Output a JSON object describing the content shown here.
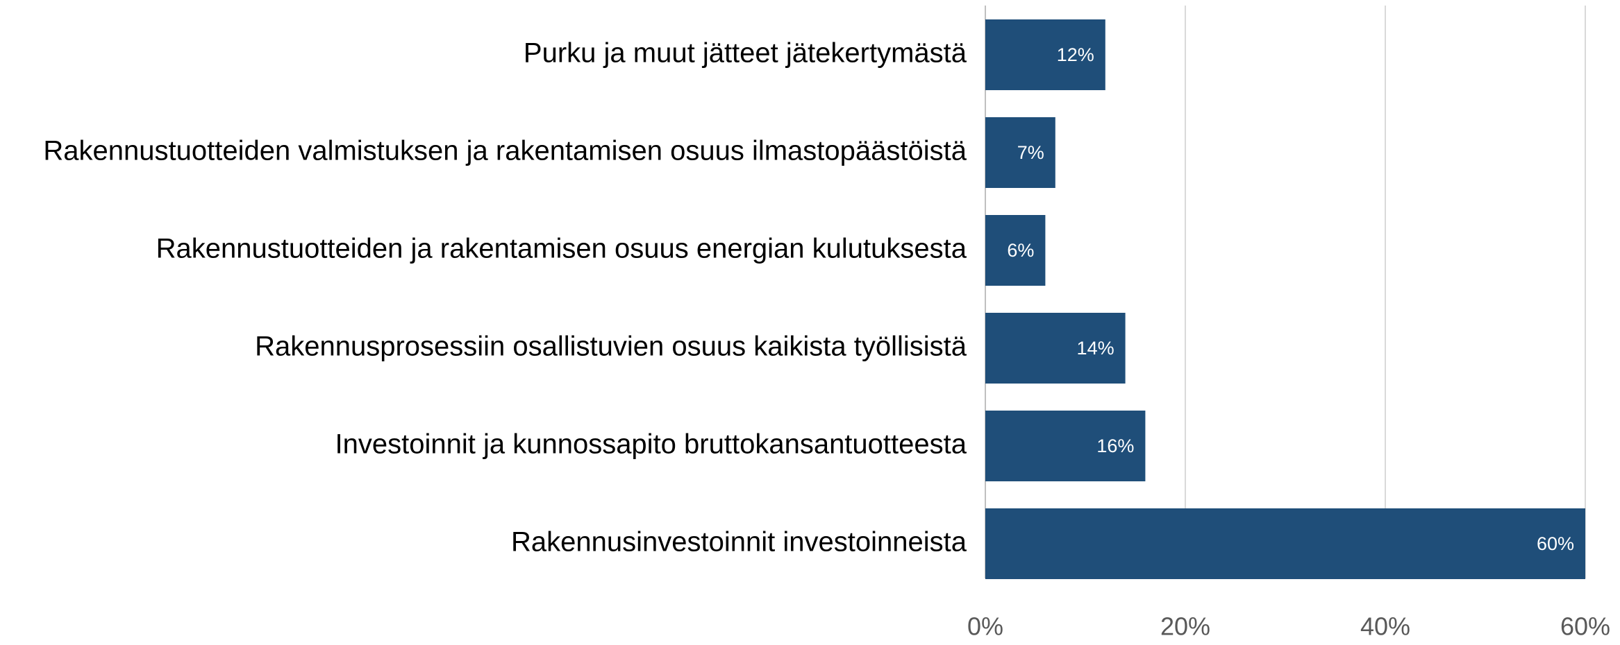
{
  "chart_data": {
    "type": "bar",
    "orientation": "horizontal",
    "categories": [
      "Purku ja muut jätteet jätekertymästä",
      "Rakennustuotteiden valmistuksen ja rakentamisen osuus ilmastopäästöistä",
      "Rakennustuotteiden ja rakentamisen osuus energian kulutuksesta",
      "Rakennusprosessiin osallistuvien osuus kaikista työllisistä",
      "Investoinnit ja kunnossapito bruttokansantuotteesta",
      "Rakennusinvestoinnit investoinneista"
    ],
    "values": [
      12,
      7,
      6,
      14,
      16,
      60
    ],
    "value_labels": [
      "12%",
      "7%",
      "6%",
      "14%",
      "16%",
      "60%"
    ],
    "color": "#1f4e79",
    "xlim": [
      0,
      60
    ],
    "xticks": [
      {
        "value": 0,
        "label": "0%"
      },
      {
        "value": 20,
        "label": "20%"
      },
      {
        "value": 40,
        "label": "40%"
      },
      {
        "value": 60,
        "label": "60%"
      }
    ],
    "grid": true
  }
}
